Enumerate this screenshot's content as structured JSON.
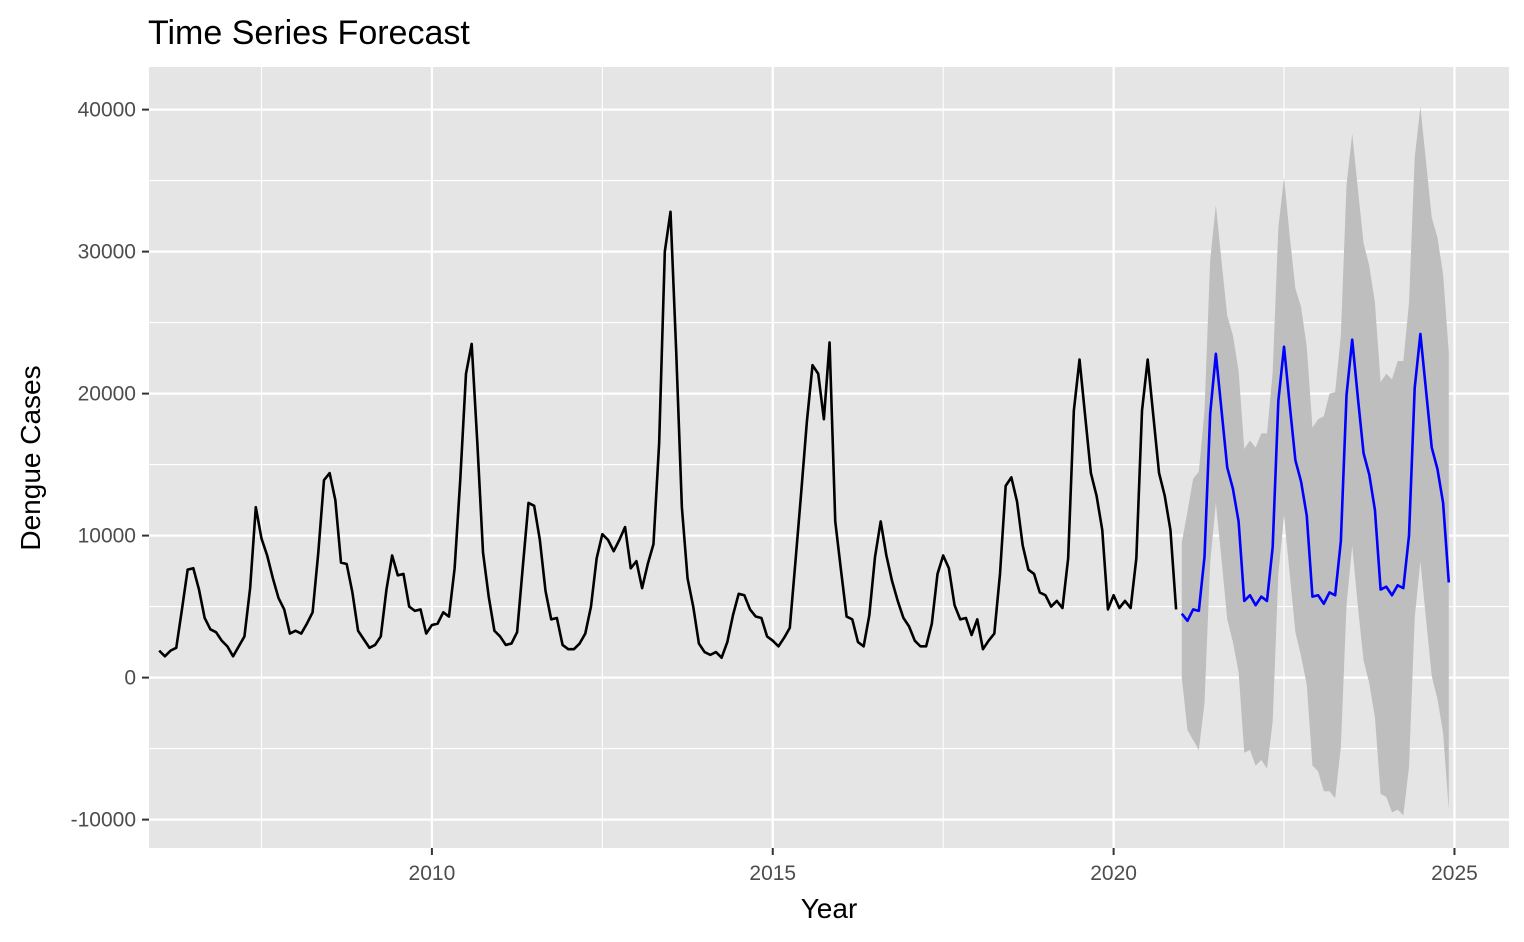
{
  "chart_data": {
    "type": "line",
    "title": "Time Series Forecast",
    "xlabel": "Year",
    "ylabel": "Dengue Cases",
    "xlim": [
      2005.85,
      2025.8
    ],
    "ylim": [
      -12000,
      43000
    ],
    "x_ticks": [
      2010,
      2015,
      2020,
      2025
    ],
    "y_ticks": [
      -10000,
      0,
      10000,
      20000,
      30000,
      40000
    ],
    "grid": true,
    "panel_background": "#e5e5e5",
    "grid_color": "#ffffff",
    "series": [
      {
        "role": "observed",
        "color": "#000000",
        "start_year": 2006.0,
        "monthly_values": [
          1900,
          1500,
          1900,
          2100,
          4800,
          7600,
          7700,
          6200,
          4200,
          3400,
          3200,
          2600,
          2200,
          1500,
          2200,
          2900,
          6300,
          12000,
          9800,
          8600,
          7000,
          5600,
          4800,
          3100,
          3300,
          3100,
          3800,
          4600,
          8800,
          13900,
          14400,
          12500,
          8100,
          8000,
          6000,
          3300,
          2700,
          2100,
          2300,
          2900,
          6200,
          8600,
          7200,
          7300,
          5000,
          4700,
          4800,
          3100,
          3700,
          3800,
          4600,
          4300,
          7700,
          14000,
          21400,
          23500,
          16500,
          8800,
          5700,
          3300,
          2900,
          2300,
          2400,
          3200,
          7800,
          12300,
          12100,
          9700,
          6100,
          4100,
          4200,
          2300,
          2000,
          2000,
          2400,
          3100,
          5000,
          8400,
          10100,
          9700,
          8900,
          9700,
          10600,
          7700,
          8200,
          6300,
          8000,
          9400,
          16500,
          30000,
          32800,
          23000,
          12000,
          7000,
          5000,
          2400,
          1800,
          1600,
          1800,
          1400,
          2500,
          4400,
          5900,
          5800,
          4800,
          4300,
          4200,
          2900,
          2600,
          2200,
          2800,
          3500,
          8200,
          13000,
          18000,
          22000,
          21400,
          18200,
          23600,
          11000,
          7600,
          4300,
          4100,
          2500,
          2200,
          4400,
          8500,
          11000,
          8600,
          6800,
          5400,
          4200,
          3600,
          2600,
          2200,
          2200,
          3800,
          7300,
          8600,
          7700,
          5100,
          4100,
          4200,
          3000,
          4100,
          2000,
          2600,
          3100,
          7300,
          13500,
          14100,
          12400,
          9300,
          7600,
          7300,
          6000,
          5800,
          5000,
          5400,
          4900,
          8400,
          18800,
          22400,
          18400,
          14400,
          12800,
          10400,
          4800,
          5800,
          4900,
          5400,
          4900,
          8400,
          18800,
          22400,
          18400,
          14400,
          12800,
          10400,
          4800
        ]
      },
      {
        "role": "forecast",
        "color": "#0000ff",
        "start_year": 2021.0,
        "monthly_values": [
          4500,
          4000,
          4800,
          4700,
          8500,
          18600,
          22800,
          18800,
          14800,
          13300,
          11000,
          5400,
          5800,
          5100,
          5700,
          5400,
          9200,
          19500,
          23300,
          19200,
          15300,
          13800,
          11400,
          5700,
          5800,
          5200,
          6000,
          5800,
          9600,
          19900,
          23800,
          19700,
          15800,
          14300,
          11800,
          6200,
          6400,
          5800,
          6500,
          6300,
          10000,
          20400,
          24200,
          20200,
          16200,
          14700,
          12300,
          6700
        ]
      }
    ],
    "interval": {
      "role": "prediction-interval",
      "color": "#bebebe",
      "start_year": 2021.0,
      "upper": [
        9500,
        11700,
        14000,
        14500,
        18800,
        29400,
        33300,
        29300,
        25500,
        24100,
        21600,
        16100,
        16700,
        16200,
        17200,
        17200,
        21500,
        31700,
        35200,
        31100,
        27400,
        26100,
        23300,
        17600,
        18200,
        18400,
        20000,
        20100,
        24100,
        34700,
        38300,
        34400,
        30600,
        29000,
        26400,
        20800,
        21400,
        21000,
        22300,
        22300,
        26400,
        36600,
        40200,
        36300,
        32400,
        31000,
        28400,
        22900
      ],
      "lower": [
        0,
        -3700,
        -4400,
        -5100,
        -1800,
        8100,
        12300,
        8300,
        4100,
        2500,
        400,
        -5300,
        -5100,
        -6200,
        -5800,
        -6400,
        -3100,
        7300,
        11400,
        7300,
        3200,
        1500,
        -500,
        -6200,
        -6600,
        -8000,
        -8000,
        -8500,
        -4900,
        5100,
        9300,
        5000,
        1200,
        -400,
        -2800,
        -8200,
        -8400,
        -9500,
        -9300,
        -9700,
        -6300,
        4200,
        8200,
        4100,
        100,
        -1500,
        -3900,
        -9300
      ]
    }
  }
}
